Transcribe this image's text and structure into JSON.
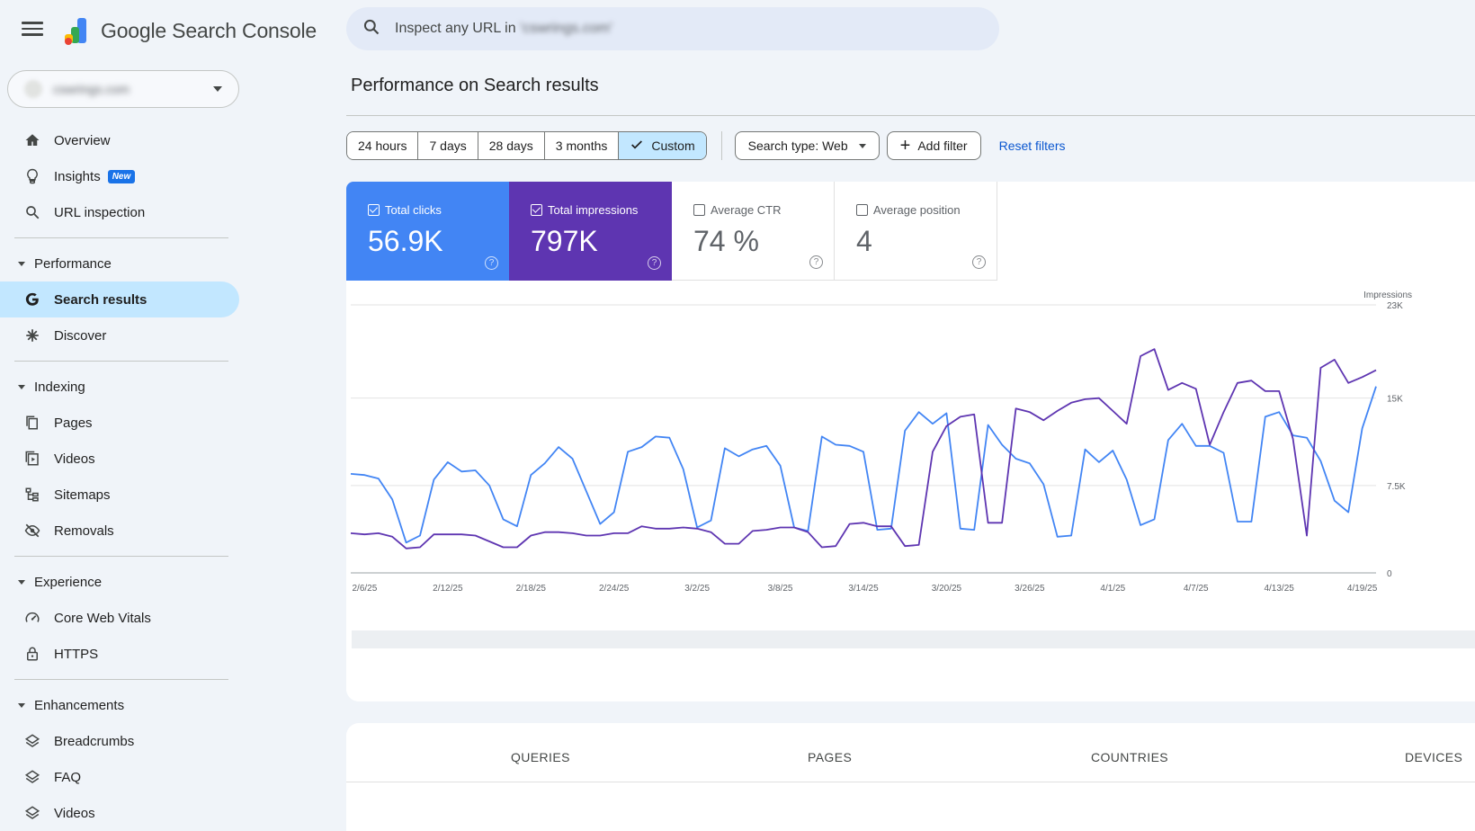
{
  "app": {
    "title_google": "Google",
    "title_product": "Search Console"
  },
  "property": {
    "name": "cswrings.com"
  },
  "search": {
    "placeholder_prefix": "Inspect any URL in",
    "placeholder_domain": "'cswrings.com'"
  },
  "nav": {
    "overview": "Overview",
    "insights": "Insights",
    "insights_badge": "New",
    "url_inspection": "URL inspection",
    "performance_section": "Performance",
    "search_results": "Search results",
    "discover": "Discover",
    "indexing_section": "Indexing",
    "pages": "Pages",
    "videos": "Videos",
    "sitemaps": "Sitemaps",
    "removals": "Removals",
    "experience_section": "Experience",
    "core_web_vitals": "Core Web Vitals",
    "https": "HTTPS",
    "enhancements_section": "Enhancements",
    "breadcrumbs": "Breadcrumbs",
    "faq": "FAQ",
    "videos_enh": "Videos"
  },
  "page": {
    "title": "Performance on Search results"
  },
  "filters": {
    "ranges": [
      "24 hours",
      "7 days",
      "28 days",
      "3 months",
      "Custom"
    ],
    "selected_range": "Custom",
    "search_type": "Search type: Web",
    "add_filter": "Add filter",
    "reset": "Reset filters"
  },
  "metrics": {
    "clicks_label": "Total clicks",
    "clicks_value": "56.9K",
    "clicks_checked": true,
    "impressions_label": "Total impressions",
    "impressions_value": "797K",
    "impressions_checked": true,
    "ctr_label": "Average CTR",
    "ctr_value": "74 %",
    "ctr_checked": false,
    "position_label": "Average position",
    "position_value": "4",
    "position_checked": false,
    "help_glyph": "?"
  },
  "colors": {
    "clicks": "#4285f4",
    "impressions": "#5e35b1",
    "accent": "#0b57d0",
    "active_nav": "#c2e7ff"
  },
  "chart_data": {
    "type": "line",
    "x_tick_labels": [
      "2/6/25",
      "2/12/25",
      "2/18/25",
      "2/24/25",
      "3/2/25",
      "3/8/25",
      "3/14/25",
      "3/20/25",
      "3/26/25",
      "4/1/25",
      "4/7/25",
      "4/13/25",
      "4/19/25"
    ],
    "x_range": [
      "2/5/25",
      "4/22/25"
    ],
    "y_right_label": "Impressions",
    "y_right_ticks": [
      "0",
      "7.5K",
      "15K",
      "23K"
    ],
    "y_right_range": [
      0,
      23000
    ],
    "grid": true,
    "series": [
      {
        "name": "Total clicks",
        "color": "#4285f4",
        "values": [
          8500,
          8400,
          8100,
          6300,
          2600,
          3200,
          8000,
          9500,
          8700,
          8800,
          7500,
          4600,
          4000,
          8400,
          9400,
          10800,
          9800,
          7000,
          4200,
          5200,
          10400,
          10800,
          11700,
          11600,
          8900,
          3900,
          4500,
          10700,
          10000,
          10600,
          10900,
          9200,
          3900,
          3600,
          11700,
          11000,
          10900,
          10400,
          3700,
          3800,
          12200,
          13800,
          12800,
          13700,
          3800,
          3700,
          12700,
          11000,
          9800,
          9400,
          7600,
          3100,
          3200,
          10600,
          9500,
          10500,
          8000,
          4100,
          4600,
          11400,
          12800,
          10900,
          10900,
          10300,
          4400,
          4400,
          13400,
          13800,
          11800,
          11600,
          9600,
          6200,
          5200,
          12400,
          16000
        ]
      },
      {
        "name": "Total impressions",
        "color": "#5e35b1",
        "values": [
          3400,
          3300,
          3400,
          3100,
          2100,
          2200,
          3300,
          3300,
          3300,
          3200,
          2700,
          2200,
          2200,
          3200,
          3500,
          3500,
          3400,
          3200,
          3200,
          3400,
          3400,
          4000,
          3800,
          3800,
          3900,
          3800,
          3500,
          2500,
          2500,
          3600,
          3700,
          3900,
          3900,
          3500,
          2200,
          2300,
          4200,
          4300,
          4000,
          4000,
          2300,
          2400,
          10400,
          12600,
          13400,
          13600,
          4300,
          4300,
          14100,
          13800,
          13100,
          13900,
          14600,
          14900,
          15000,
          13900,
          12800,
          18600,
          19200,
          15700,
          16300,
          15800,
          11000,
          13800,
          16300,
          16500,
          15600,
          15600,
          11500,
          3200,
          17600,
          18300,
          16300,
          16800,
          17400
        ]
      }
    ]
  },
  "tabs": [
    "QUERIES",
    "PAGES",
    "COUNTRIES",
    "DEVICES"
  ]
}
